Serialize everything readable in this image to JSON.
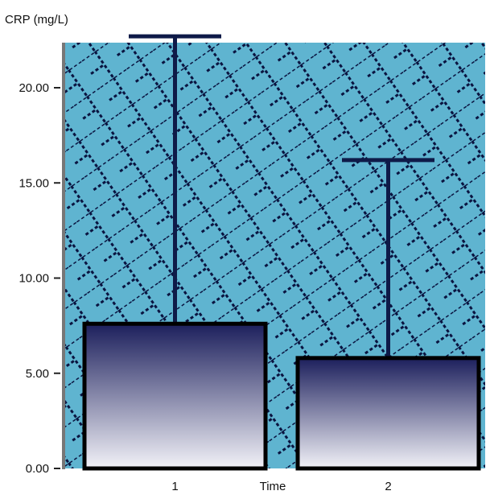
{
  "chart_data": {
    "type": "bar",
    "title": "",
    "ylabel": "CRP (mg/L)",
    "xlabel": "Time",
    "categories": [
      "1",
      "2"
    ],
    "values": [
      7.6,
      5.8
    ],
    "error_upper": [
      22.7,
      16.2
    ],
    "ylim": [
      0,
      24
    ],
    "yticks": [
      0,
      5,
      10,
      15,
      20
    ],
    "ytick_labels": [
      "0.00",
      "5.00",
      "10.00",
      "15.00",
      "20.00"
    ],
    "grid": false,
    "legend": "none",
    "colors": {
      "plot_background": "#5fb4d0",
      "pattern": "#0a1440",
      "bar_top": "#1c1f5c",
      "bar_bottom": "#f2f2f8",
      "bar_outline": "#000000",
      "error_bar": "#0e1a48"
    }
  }
}
